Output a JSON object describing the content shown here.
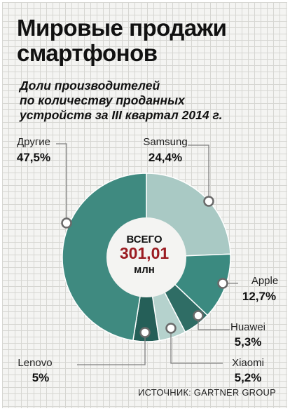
{
  "title_line1": "Мировые продажи",
  "title_line2": "смартфонов",
  "subtitle_line1": "Доли производителей",
  "subtitle_line2": "по количеству проданных",
  "subtitle_line3": "устройств за III квартал 2014 г.",
  "center": {
    "caption_top": "ВСЕГО",
    "value": "301,01",
    "caption_bottom": "млн"
  },
  "source": "ИСТОЧНИК: GARTNER GROUP",
  "colors": {
    "samsung": "#a9c9c4",
    "apple": "#3b8a80",
    "huawei": "#2f6d65",
    "xiaomi": "#b5d2cd",
    "lenovo": "#255f58",
    "others": "#3f8a80",
    "total_value": "#9b1c22"
  },
  "chart_data": {
    "type": "pie",
    "style": "donut",
    "title": "Мировые продажи смартфонов",
    "subtitle": "Доли производителей по количеству проданных устройств за III квартал 2014 г.",
    "unit": "%",
    "slices": [
      {
        "label": "Samsung",
        "value": 24.4,
        "display": "24,4%"
      },
      {
        "label": "Apple",
        "value": 12.7,
        "display": "12,7%"
      },
      {
        "label": "Huawei",
        "value": 5.3,
        "display": "5,3%"
      },
      {
        "label": "Xiaomi",
        "value": 5.2,
        "display": "5,2%"
      },
      {
        "label": "Lenovo",
        "value": 5.0,
        "display": "5%"
      },
      {
        "label": "Другие",
        "value": 47.5,
        "display": "47,5%"
      }
    ],
    "total": {
      "value": 301.01,
      "unit": "млн"
    }
  }
}
